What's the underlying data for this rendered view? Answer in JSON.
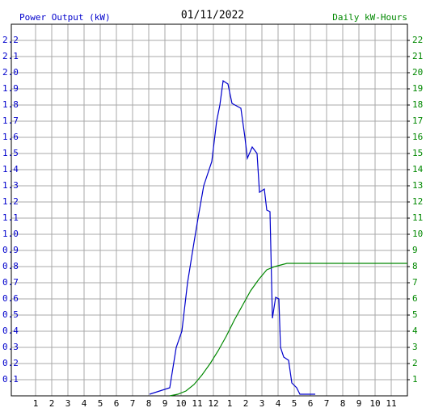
{
  "chart_data": {
    "type": "line",
    "title": "01/11/2022",
    "ylabel": "Power Output (kW)",
    "y2label": "Daily kW-Hours",
    "xlim": [
      -0.5,
      24
    ],
    "xticks": [
      1,
      2,
      3,
      4,
      5,
      6,
      7,
      8,
      9,
      10,
      11,
      12,
      {
        "value": 13,
        "label": "1"
      },
      {
        "value": 14,
        "label": "2"
      },
      {
        "value": 15,
        "label": "3"
      },
      {
        "value": 16,
        "label": "4"
      },
      {
        "value": 17,
        "label": "5"
      },
      {
        "value": 18,
        "label": "6"
      },
      {
        "value": 19,
        "label": "7"
      },
      {
        "value": 20,
        "label": "8"
      },
      {
        "value": 21,
        "label": "9"
      },
      {
        "value": 22,
        "label": "10"
      },
      {
        "value": 23,
        "label": "11"
      }
    ],
    "ylim": [
      0,
      2.3
    ],
    "yticks": [
      0.1,
      0.2,
      0.3,
      0.4,
      0.5,
      0.6,
      0.7,
      0.8,
      0.9,
      {
        "value": 1,
        "label": "1.0"
      },
      1.1,
      1.2,
      1.3,
      1.4,
      1.5,
      1.6,
      1.7,
      1.8,
      1.9,
      {
        "value": 2,
        "label": "2.0"
      },
      2.1,
      2.2
    ],
    "y2lim": [
      0,
      23
    ],
    "y2ticks": [
      1,
      2,
      3,
      4,
      5,
      6,
      7,
      8,
      9,
      10,
      11,
      12,
      13,
      14,
      15,
      16,
      17,
      18,
      19,
      20,
      21,
      22
    ],
    "grid": true,
    "series": [
      {
        "name": "Power Output (kW)",
        "color": "#0000cc",
        "x": [
          8.05,
          9.3,
          9.7,
          10.05,
          10.4,
          10.8,
          11.05,
          11.4,
          11.9,
          12.2,
          12.4,
          12.6,
          12.9,
          13.15,
          13.7,
          13.95,
          14.1,
          14.4,
          14.7,
          14.85,
          15.15,
          15.3,
          15.5,
          15.65,
          15.85,
          16.05,
          16.15,
          16.35,
          16.65,
          16.85,
          17.15,
          17.35,
          18.3
        ],
        "values": [
          0.01,
          0.05,
          0.3,
          0.4,
          0.7,
          0.95,
          1.1,
          1.3,
          1.45,
          1.7,
          1.8,
          1.95,
          1.93,
          1.81,
          1.78,
          1.6,
          1.47,
          1.54,
          1.5,
          1.26,
          1.28,
          1.15,
          1.14,
          0.48,
          0.61,
          0.6,
          0.3,
          0.24,
          0.22,
          0.08,
          0.05,
          0.01,
          0.01
        ]
      },
      {
        "name": "Daily kW-Hours",
        "color": "#008800",
        "axis": "y2",
        "x": [
          9.3,
          9.8,
          10.3,
          10.8,
          11.3,
          11.8,
          12.3,
          12.8,
          13.3,
          13.8,
          14.3,
          14.8,
          15.3,
          15.8,
          16.55,
          24
        ],
        "values": [
          0,
          0.1,
          0.3,
          0.7,
          1.3,
          2.0,
          2.8,
          3.7,
          4.7,
          5.6,
          6.5,
          7.2,
          7.8,
          8.0,
          8.2,
          8.2
        ]
      }
    ]
  }
}
